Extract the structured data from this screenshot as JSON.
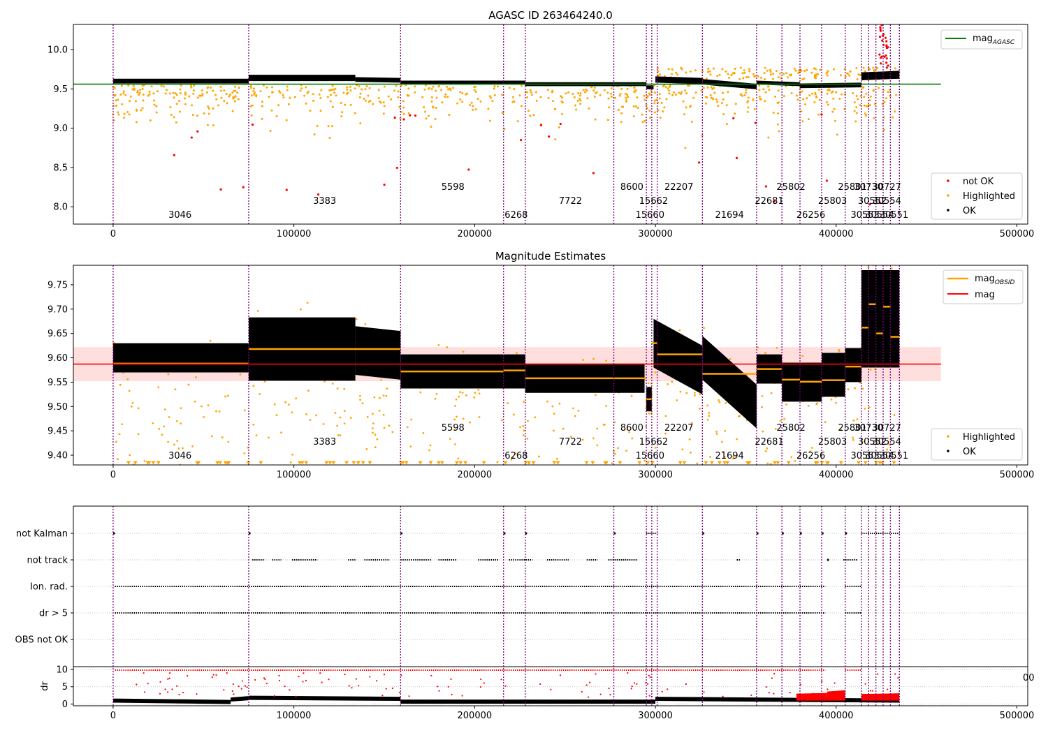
{
  "chart_data": [
    {
      "type": "scatter",
      "title": "AGASC ID 263464240.0",
      "xlim": [
        -22000,
        506000
      ],
      "ylim": [
        7.78,
        10.32
      ],
      "yticks": [
        8.0,
        8.5,
        9.0,
        9.5,
        10.0
      ],
      "ytick_labels": [
        "8.0",
        "8.5",
        "9.0",
        "9.5",
        "10.0"
      ],
      "xticks": [
        0,
        100000,
        200000,
        300000,
        400000,
        500000
      ],
      "xtick_labels": [
        "0",
        "100000",
        "200000",
        "300000",
        "400000",
        "500000"
      ],
      "reference_lines": [
        {
          "name": "mag_AGASC",
          "value": 9.56,
          "x_range": [
            -22000,
            458000
          ],
          "color": "#008000"
        }
      ],
      "series": [
        {
          "name": "not OK",
          "color": "#ff0000"
        },
        {
          "name": "Highlighted",
          "color": "#ffa500"
        },
        {
          "name": "OK",
          "color": "#000000"
        }
      ],
      "legend_top": {
        "position": "top-right",
        "main": "mag",
        "sub": "AGASC"
      },
      "legend_bottom": {
        "position": "bottom-right",
        "entries": [
          "not OK",
          "Highlighted",
          "OK"
        ]
      },
      "ok_segments": [
        {
          "x0": 0,
          "x1": 75000,
          "y0": 9.6,
          "y1": 9.6,
          "h": 0.06
        },
        {
          "x0": 75000,
          "x1": 134000,
          "y0": 9.64,
          "y1": 9.64,
          "h": 0.08
        },
        {
          "x0": 134000,
          "x1": 159000,
          "y0": 9.62,
          "y1": 9.61,
          "h": 0.06
        },
        {
          "x0": 159000,
          "x1": 228000,
          "y0": 9.58,
          "y1": 9.58,
          "h": 0.05
        },
        {
          "x0": 228000,
          "x1": 295000,
          "y0": 9.56,
          "y1": 9.56,
          "h": 0.05
        },
        {
          "x0": 295000,
          "x1": 299000,
          "y0": 9.52,
          "y1": 9.52,
          "h": 0.05
        },
        {
          "x0": 300000,
          "x1": 326000,
          "y0": 9.62,
          "y1": 9.6,
          "h": 0.08
        },
        {
          "x0": 326000,
          "x1": 356000,
          "y0": 9.59,
          "y1": 9.53,
          "h": 0.07
        },
        {
          "x0": 356000,
          "x1": 380000,
          "y0": 9.58,
          "y1": 9.56,
          "h": 0.05
        },
        {
          "x0": 380000,
          "x1": 414000,
          "y0": 9.54,
          "y1": 9.55,
          "h": 0.06
        },
        {
          "x0": 414000,
          "x1": 435000,
          "y0": 9.66,
          "y1": 9.68,
          "h": 0.1
        }
      ]
    },
    {
      "type": "scatter",
      "title": "Magnitude Estimates",
      "xlim": [
        -22000,
        506000
      ],
      "ylim": [
        9.38,
        9.79
      ],
      "yticks": [
        9.4,
        9.45,
        9.5,
        9.55,
        9.6,
        9.65,
        9.7,
        9.75
      ],
      "ytick_labels": [
        "9.40",
        "9.45",
        "9.50",
        "9.55",
        "9.60",
        "9.65",
        "9.70",
        "9.75"
      ],
      "xticks": [
        0,
        100000,
        200000,
        300000,
        400000,
        500000
      ],
      "xtick_labels": [
        "0",
        "100000",
        "200000",
        "300000",
        "400000",
        "500000"
      ],
      "mag": 9.587,
      "mag_band": [
        9.552,
        9.622
      ],
      "mag_band_x_range": [
        -22000,
        458000
      ],
      "series": [
        {
          "name": "Highlighted",
          "color": "#ffa500"
        },
        {
          "name": "OK",
          "color": "#000000"
        }
      ],
      "legend_top": {
        "position": "top-right",
        "entries": [
          {
            "main": "mag",
            "sub": "OBSID",
            "color": "#ffa500"
          },
          {
            "main": "mag",
            "sub": "",
            "color": "#ff0000"
          }
        ]
      },
      "legend_bottom": {
        "position": "bottom-right",
        "entries": [
          "Highlighted",
          "OK"
        ]
      },
      "obsid_mags": [
        {
          "x0": 0,
          "x1": 75000,
          "mag": 9.588
        },
        {
          "x0": 75000,
          "x1": 159000,
          "mag": 9.618
        },
        {
          "x0": 159000,
          "x1": 216000,
          "mag": 9.572
        },
        {
          "x0": 216000,
          "x1": 228000,
          "mag": 9.574
        },
        {
          "x0": 228000,
          "x1": 277000,
          "mag": 9.558
        },
        {
          "x0": 277000,
          "x1": 295000,
          "mag": 9.558
        },
        {
          "x0": 295000,
          "x1": 298000,
          "mag": 9.515
        },
        {
          "x0": 298000,
          "x1": 301000,
          "mag": 9.63
        },
        {
          "x0": 301000,
          "x1": 326000,
          "mag": 9.607
        },
        {
          "x0": 326000,
          "x1": 356000,
          "mag": 9.567
        },
        {
          "x0": 356000,
          "x1": 370000,
          "mag": 9.577
        },
        {
          "x0": 370000,
          "x1": 380000,
          "mag": 9.555
        },
        {
          "x0": 380000,
          "x1": 392000,
          "mag": 9.551
        },
        {
          "x0": 392000,
          "x1": 405000,
          "mag": 9.554
        },
        {
          "x0": 405000,
          "x1": 414000,
          "mag": 9.582
        },
        {
          "x0": 414000,
          "x1": 418000,
          "mag": 9.662
        },
        {
          "x0": 418000,
          "x1": 422000,
          "mag": 9.71
        },
        {
          "x0": 422000,
          "x1": 426000,
          "mag": 9.65
        },
        {
          "x0": 426000,
          "x1": 430000,
          "mag": 9.705
        },
        {
          "x0": 430000,
          "x1": 435000,
          "mag": 9.643
        }
      ],
      "ok_segments": [
        {
          "x0": 0,
          "x1": 75000,
          "y0": 9.6,
          "y1": 9.6,
          "h": 0.06
        },
        {
          "x0": 75000,
          "x1": 134000,
          "y0": 9.618,
          "y1": 9.618,
          "h": 0.13
        },
        {
          "x0": 134000,
          "x1": 159000,
          "y0": 9.615,
          "y1": 9.605,
          "h": 0.1
        },
        {
          "x0": 159000,
          "x1": 228000,
          "y0": 9.572,
          "y1": 9.572,
          "h": 0.07
        },
        {
          "x0": 228000,
          "x1": 294000,
          "y0": 9.558,
          "y1": 9.558,
          "h": 0.06
        },
        {
          "x0": 295000,
          "x1": 298000,
          "y0": 9.515,
          "y1": 9.515,
          "h": 0.05
        },
        {
          "x0": 299000,
          "x1": 326000,
          "y0": 9.63,
          "y1": 9.575,
          "h": 0.1
        },
        {
          "x0": 326000,
          "x1": 356000,
          "y0": 9.6,
          "y1": 9.5,
          "h": 0.09
        },
        {
          "x0": 356000,
          "x1": 370000,
          "y0": 9.577,
          "y1": 9.577,
          "h": 0.06
        },
        {
          "x0": 370000,
          "x1": 392000,
          "y0": 9.55,
          "y1": 9.55,
          "h": 0.08
        },
        {
          "x0": 392000,
          "x1": 405000,
          "y0": 9.565,
          "y1": 9.565,
          "h": 0.09
        },
        {
          "x0": 405000,
          "x1": 414000,
          "y0": 9.585,
          "y1": 9.585,
          "h": 0.07
        },
        {
          "x0": 414000,
          "x1": 435000,
          "y0": 9.68,
          "y1": 9.68,
          "h": 0.2
        }
      ]
    },
    {
      "type": "scatter",
      "title": "",
      "flag_rows": [
        "not Kalman",
        "not track",
        "Ion. rad.",
        "dr > 5",
        "OBS not OK"
      ],
      "flag_ranges": {
        "not Kalman": [
          [
            0,
            1000
          ],
          [
            75000,
            76000
          ],
          [
            159000,
            160000
          ],
          [
            216000,
            217000
          ],
          [
            228000,
            229000
          ],
          [
            277000,
            278000
          ],
          [
            295000,
            301000
          ],
          [
            326000,
            327000
          ],
          [
            356000,
            357000
          ],
          [
            370000,
            371000
          ],
          [
            380000,
            381000
          ],
          [
            392000,
            393000
          ],
          [
            405000,
            406000
          ],
          [
            414000,
            435000
          ]
        ],
        "not track": [
          [
            77000,
            84000
          ],
          [
            88000,
            93000
          ],
          [
            99000,
            113000
          ],
          [
            130000,
            134000
          ],
          [
            139000,
            153000
          ],
          [
            159000,
            176000
          ],
          [
            180000,
            190000
          ],
          [
            202000,
            213000
          ],
          [
            219000,
            232000
          ],
          [
            240000,
            252000
          ],
          [
            262000,
            268000
          ],
          [
            274000,
            290000
          ],
          [
            345000,
            347000
          ],
          [
            395000,
            396000
          ],
          [
            404000,
            412000
          ]
        ],
        "Ion. rad.": [
          [
            1000,
            75000
          ],
          [
            75000,
            394000
          ],
          [
            405000,
            414000
          ]
        ],
        "dr > 5": [
          [
            1000,
            75000
          ],
          [
            75000,
            394000
          ],
          [
            405000,
            414000
          ]
        ],
        "OBS not OK": []
      },
      "dr_axis": {
        "ylabel": "dr",
        "ylim": [
          -0.5,
          10.8
        ],
        "yticks": [
          0,
          5,
          10
        ],
        "ytick_labels": [
          "0",
          "5",
          "10"
        ]
      },
      "dr_ok_segments": [
        {
          "x0": 0,
          "x1": 65000,
          "y0": 1.0,
          "y1": 0.6
        },
        {
          "x0": 65000,
          "x1": 75000,
          "y0": 1.3,
          "y1": 1.7
        },
        {
          "x0": 75000,
          "x1": 159000,
          "y0": 1.8,
          "y1": 1.5
        },
        {
          "x0": 159000,
          "x1": 300000,
          "y0": 0.7,
          "y1": 0.7
        },
        {
          "x0": 300000,
          "x1": 435000,
          "y0": 1.5,
          "y1": 1.0
        }
      ],
      "dr_high_segments": [
        {
          "x0": 378000,
          "x1": 395000,
          "y0": 2.4,
          "y1": 2.6
        },
        {
          "x0": 395000,
          "x1": 405000,
          "y0": 3.0,
          "y1": 3.4
        },
        {
          "x0": 414000,
          "x1": 435000,
          "y0": 2.3,
          "y1": 2.5
        }
      ],
      "xticks": [
        0,
        100000,
        200000,
        300000,
        400000,
        500000
      ],
      "xtick_labels": [
        "0",
        "100000",
        "200000",
        "300000",
        "400000",
        "500000"
      ],
      "clipped_tick_label": "00"
    }
  ],
  "obs_boundaries": [
    0,
    75000,
    159000,
    216000,
    228000,
    277000,
    295000,
    298000,
    301000,
    326000,
    356000,
    370000,
    380000,
    392000,
    405000,
    414000,
    418000,
    422000,
    426000,
    430000,
    435000
  ],
  "obsid_labels": [
    {
      "text": "3046",
      "x": 37000,
      "row": 0
    },
    {
      "text": "3383",
      "x": 117000,
      "row": 1
    },
    {
      "text": "5598",
      "x": 188000,
      "row": 2
    },
    {
      "text": "6268",
      "x": 223000,
      "row": 0
    },
    {
      "text": "7722",
      "x": 253000,
      "row": 1
    },
    {
      "text": "8600",
      "x": 287000,
      "row": 2
    },
    {
      "text": "15660",
      "x": 297000,
      "row": 0
    },
    {
      "text": "15662",
      "x": 299000,
      "row": 1
    },
    {
      "text": "22207",
      "x": 313000,
      "row": 2
    },
    {
      "text": "21694",
      "x": 341000,
      "row": 0
    },
    {
      "text": "22681",
      "x": 363000,
      "row": 1
    },
    {
      "text": "25802",
      "x": 375000,
      "row": 2
    },
    {
      "text": "26256",
      "x": 386000,
      "row": 0
    },
    {
      "text": "25803",
      "x": 398000,
      "row": 1
    },
    {
      "text": "25801",
      "x": 409000,
      "row": 2
    },
    {
      "text": "30553",
      "x": 416000,
      "row": 0
    },
    {
      "text": "30552",
      "x": 420000,
      "row": 1
    },
    {
      "text": "30730",
      "x": 418000,
      "row": 2
    },
    {
      "text": "30554",
      "x": 424000,
      "row": 0
    },
    {
      "text": "30554",
      "x": 428000,
      "row": 1
    },
    {
      "text": "30727",
      "x": 428000,
      "row": 2
    },
    {
      "text": "30551",
      "x": 432000,
      "row": 0
    }
  ],
  "colors": {
    "boundary": "#800080",
    "axis": "#000000",
    "grid": "#b0b0b0"
  }
}
